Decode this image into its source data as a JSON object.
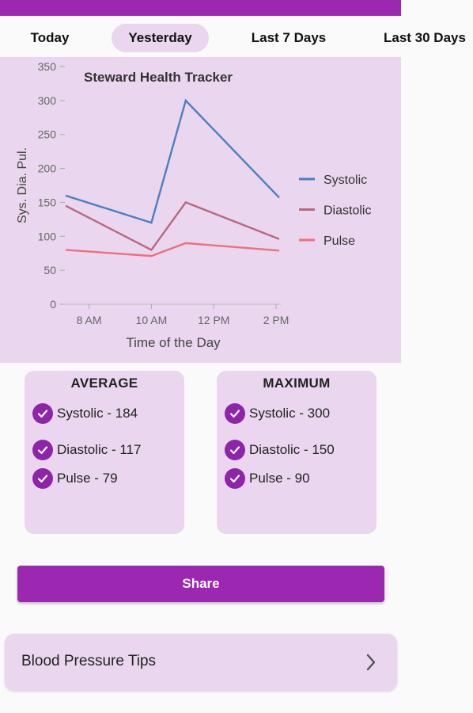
{
  "tabs": [
    {
      "label": "Today",
      "active": false
    },
    {
      "label": "Yesterday",
      "active": true
    },
    {
      "label": "Last 7 Days",
      "active": false
    },
    {
      "label": "Last 30 Days",
      "active": false
    }
  ],
  "chart_data": {
    "type": "line",
    "title": "Steward Health Tracker",
    "xlabel": "Time of the Day",
    "ylabel": "Sys. Dia. Pul.",
    "ylim": [
      0,
      350
    ],
    "yticks": [
      "0",
      "50",
      "100",
      "150",
      "200",
      "250",
      "300",
      "350"
    ],
    "xticks": [
      {
        "label": "8 AM",
        "value": 8
      },
      {
        "label": "10 AM",
        "value": 10
      },
      {
        "label": "12 PM",
        "value": 12
      },
      {
        "label": "2 PM",
        "value": 14
      }
    ],
    "xlim": [
      7.25,
      14.15
    ],
    "x": [
      7.25,
      10,
      11.1,
      14.1
    ],
    "series": [
      {
        "name": "Systolic",
        "color": "#4a7fc1",
        "values": [
          160,
          120,
          300,
          157
        ]
      },
      {
        "name": "Diastolic",
        "color": "#b86883",
        "values": [
          145,
          80,
          150,
          96
        ]
      },
      {
        "name": "Pulse",
        "color": "#ef6f7c",
        "values": [
          80,
          71,
          90,
          79
        ]
      }
    ],
    "legend": "right",
    "grid": false
  },
  "stats": {
    "average": {
      "title": "AVERAGE",
      "items": [
        "Systolic - 184",
        "Diastolic - 117",
        "Pulse - 79"
      ]
    },
    "maximum": {
      "title": "MAXIMUM",
      "items": [
        "Systolic - 300",
        "Diastolic - 150",
        "Pulse - 90"
      ]
    }
  },
  "share_label": "Share",
  "tips_label": "Blood Pressure Tips",
  "colors": {
    "accent": "#9c27b0",
    "panel": "#ead6ee",
    "check": "#8e24aa"
  }
}
